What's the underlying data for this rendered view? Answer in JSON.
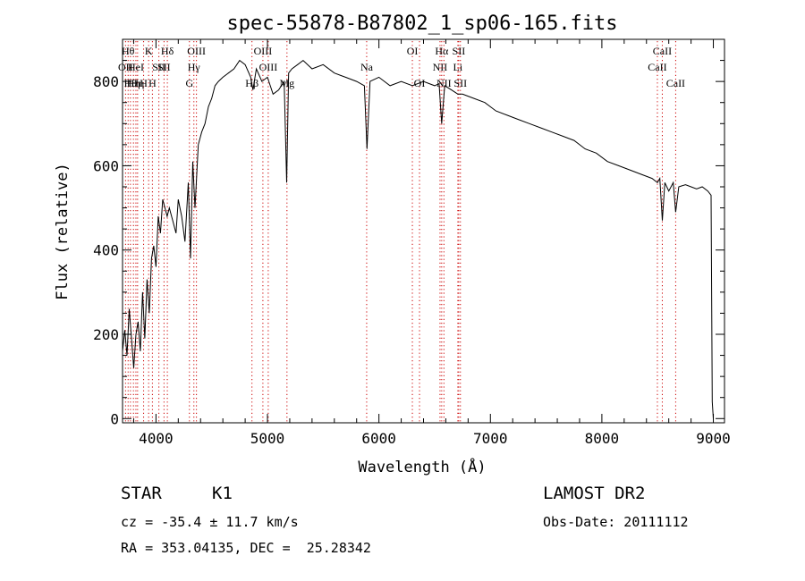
{
  "chart_data": {
    "type": "line",
    "title": "spec-55878-B87802_1_sp06-165.fits",
    "xlabel": "Wavelength (Å)",
    "ylabel": "Flux (relative)",
    "xlim": [
      3700,
      9100
    ],
    "ylim": [
      -10,
      900
    ],
    "xticks": [
      4000,
      5000,
      6000,
      7000,
      8000,
      9000
    ],
    "xtick_labels": [
      "4000",
      "5000",
      "6000",
      "7000",
      "8000",
      "9000"
    ],
    "yticks": [
      0,
      200,
      400,
      600,
      800
    ],
    "ytick_labels": [
      "0",
      "200",
      "400",
      "600",
      "800"
    ],
    "grid": false,
    "legend": "none",
    "line_color": "#000000",
    "marker_color": "#cc0000",
    "series": [
      {
        "x": [
          3700,
          3720,
          3740,
          3760,
          3780,
          3800,
          3820,
          3840,
          3860,
          3880,
          3900,
          3920,
          3940,
          3960,
          3980,
          4000,
          4020,
          4040,
          4060,
          4080,
          4100,
          4120,
          4150,
          4180,
          4200,
          4230,
          4260,
          4290,
          4310,
          4330,
          4350,
          4380,
          4410,
          4440,
          4470,
          4500,
          4530,
          4560,
          4600,
          4650,
          4700,
          4750,
          4800,
          4850,
          4870,
          4900,
          4950,
          5000,
          5050,
          5100,
          5150,
          5172,
          5190,
          5220,
          5270,
          5320,
          5400,
          5500,
          5600,
          5700,
          5800,
          5870,
          5893,
          5920,
          6000,
          6100,
          6200,
          6300,
          6400,
          6500,
          6540,
          6563,
          6590,
          6650,
          6708,
          6750,
          6850,
          6950,
          7050,
          7150,
          7250,
          7350,
          7450,
          7550,
          7650,
          7750,
          7850,
          7950,
          8050,
          8150,
          8250,
          8350,
          8450,
          8498,
          8520,
          8542,
          8565,
          8600,
          8640,
          8662,
          8690,
          8750,
          8800,
          8850,
          8900,
          8950,
          8980,
          8990,
          9000
        ],
        "y": [
          160,
          210,
          150,
          260,
          190,
          120,
          200,
          230,
          160,
          300,
          190,
          330,
          250,
          380,
          410,
          360,
          480,
          440,
          520,
          500,
          480,
          500,
          470,
          440,
          520,
          480,
          420,
          560,
          380,
          610,
          500,
          650,
          680,
          700,
          740,
          760,
          790,
          800,
          810,
          820,
          830,
          850,
          840,
          810,
          780,
          830,
          800,
          810,
          770,
          780,
          800,
          560,
          820,
          830,
          840,
          850,
          830,
          840,
          820,
          810,
          800,
          790,
          640,
          800,
          810,
          790,
          800,
          790,
          800,
          790,
          795,
          700,
          790,
          780,
          770,
          770,
          760,
          750,
          730,
          720,
          710,
          700,
          690,
          680,
          670,
          660,
          640,
          630,
          610,
          600,
          590,
          580,
          570,
          560,
          570,
          470,
          560,
          540,
          560,
          490,
          550,
          555,
          550,
          545,
          550,
          540,
          530,
          40,
          0
        ]
      }
    ],
    "lines": [
      {
        "w": 3727,
        "label": "OII",
        "row": 2
      },
      {
        "w": 3750,
        "label": "Hθ",
        "row": 1
      },
      {
        "w": 3771,
        "label": "Hθ",
        "row": 3
      },
      {
        "w": 3798,
        "label": "Hη",
        "row": 3
      },
      {
        "w": 3820,
        "label": "HeI",
        "row": 2
      },
      {
        "w": 3835,
        "label": "Hη",
        "row": 3
      },
      {
        "w": 3889,
        "label": "H",
        "row": 3
      },
      {
        "w": 3934,
        "label": "K",
        "row": 1
      },
      {
        "w": 3968,
        "label": "H",
        "row": 3
      },
      {
        "w": 4026,
        "label": "SII",
        "row": 2
      },
      {
        "w": 4072,
        "label": "SII",
        "row": 2
      },
      {
        "w": 4102,
        "label": "Hδ",
        "row": 1
      },
      {
        "w": 4300,
        "label": "G",
        "row": 3
      },
      {
        "w": 4340,
        "label": "Hγ",
        "row": 2
      },
      {
        "w": 4363,
        "label": "OIII",
        "row": 1
      },
      {
        "w": 4861,
        "label": "Hβ",
        "row": 3
      },
      {
        "w": 4959,
        "label": "OIII",
        "row": 1
      },
      {
        "w": 5007,
        "label": "OIII",
        "row": 2
      },
      {
        "w": 5175,
        "label": "Mg",
        "row": 3
      },
      {
        "w": 5890,
        "label": "Na",
        "row": 2
      },
      {
        "w": 6300,
        "label": "OI",
        "row": 1
      },
      {
        "w": 6364,
        "label": "OI",
        "row": 3
      },
      {
        "w": 6548,
        "label": "NII",
        "row": 2
      },
      {
        "w": 6563,
        "label": "Hα",
        "row": 1
      },
      {
        "w": 6583,
        "label": "NII",
        "row": 3
      },
      {
        "w": 6708,
        "label": "Li",
        "row": 2
      },
      {
        "w": 6716,
        "label": "SII",
        "row": 1
      },
      {
        "w": 6731,
        "label": "SII",
        "row": 3
      },
      {
        "w": 8498,
        "label": "CaII",
        "row": 2
      },
      {
        "w": 8542,
        "label": "CaII",
        "row": 1
      },
      {
        "w": 8662,
        "label": "CaII",
        "row": 3
      }
    ]
  },
  "info": {
    "object_class": "STAR",
    "subclass": "K1",
    "survey": "LAMOST DR2",
    "cz": "cz = -35.4 ± 11.7 km/s",
    "obs_date": "Obs-Date: 20111112",
    "coords": "RA = 353.04135, DEC =  25.28342"
  }
}
